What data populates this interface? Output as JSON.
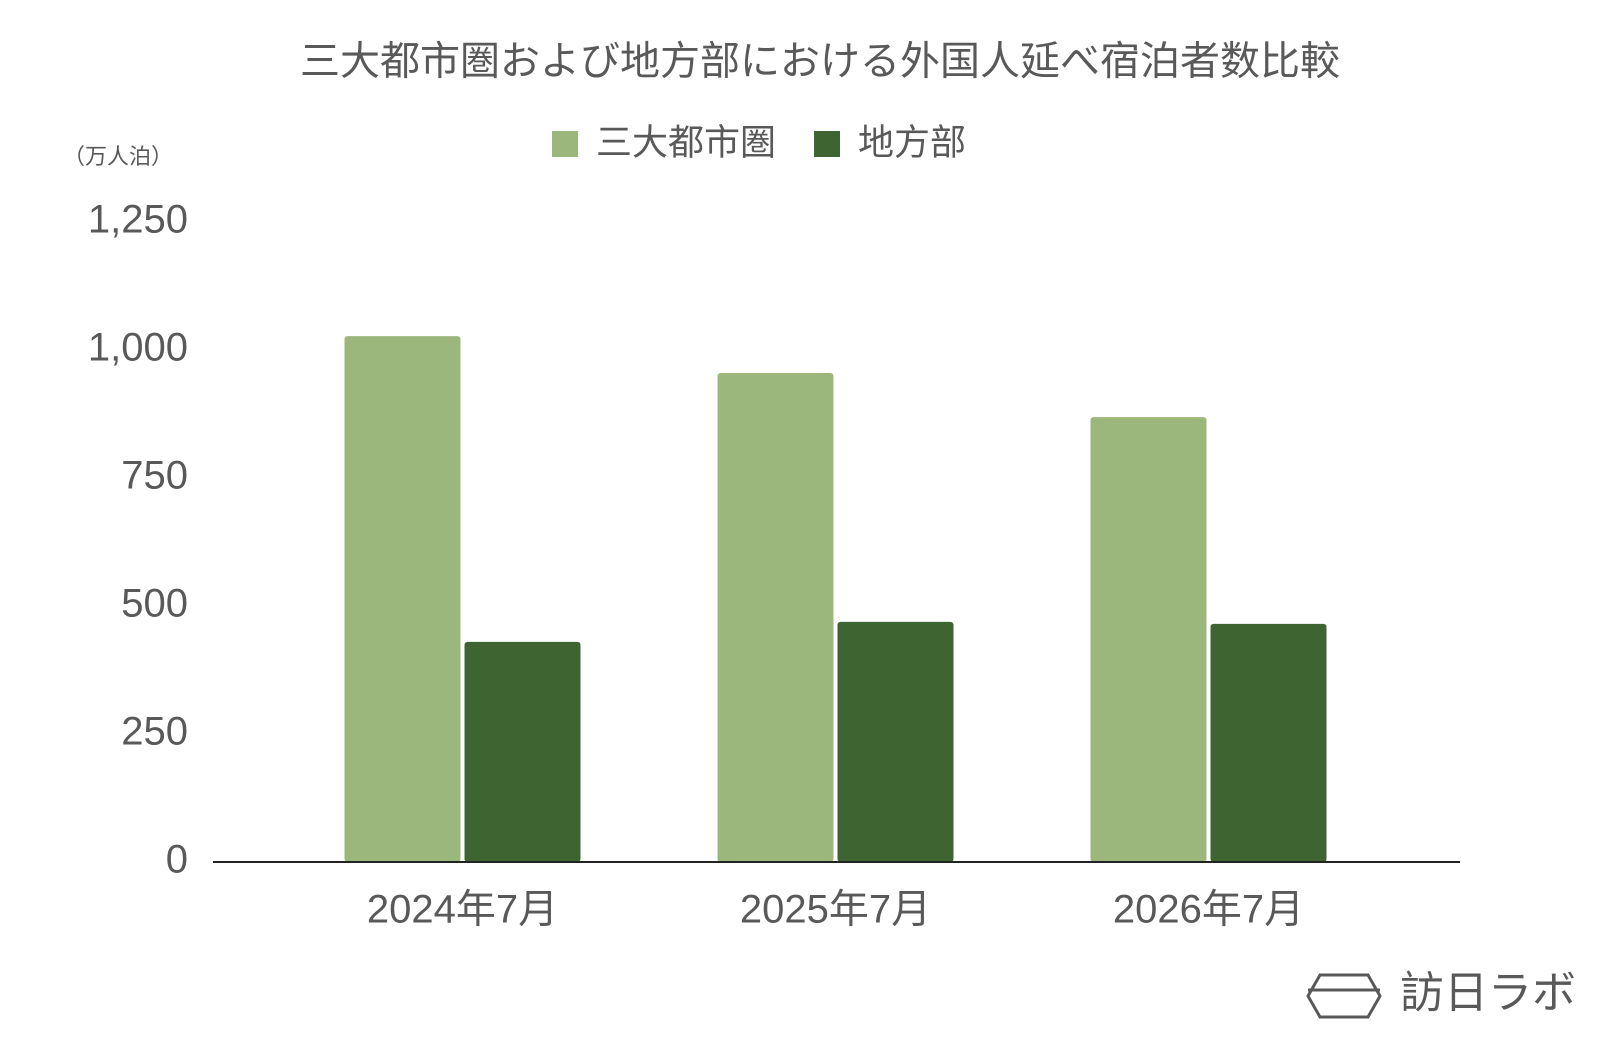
{
  "chart_data": {
    "type": "bar",
    "title": "三大都市圏および地方部における外国人延べ宿泊者数比較",
    "y_axis_label": "（万人泊）",
    "categories": [
      "2024年7月",
      "2025年7月",
      "2026年7月"
    ],
    "series": [
      {
        "name": "三大都市圏",
        "color": "#9bb77c",
        "values": [
          1027,
          955,
          869
        ]
      },
      {
        "name": "地方部",
        "color": "#3e6531",
        "values": [
          430,
          469,
          465
        ]
      }
    ],
    "ylim": [
      0,
      1250
    ],
    "yticks": [
      0,
      250,
      500,
      750,
      {
        "value": 1000,
        "label": "1,000"
      },
      {
        "value": 1250,
        "label": "1,250"
      }
    ],
    "legend": "top",
    "watermark": "訪日ラボ"
  }
}
